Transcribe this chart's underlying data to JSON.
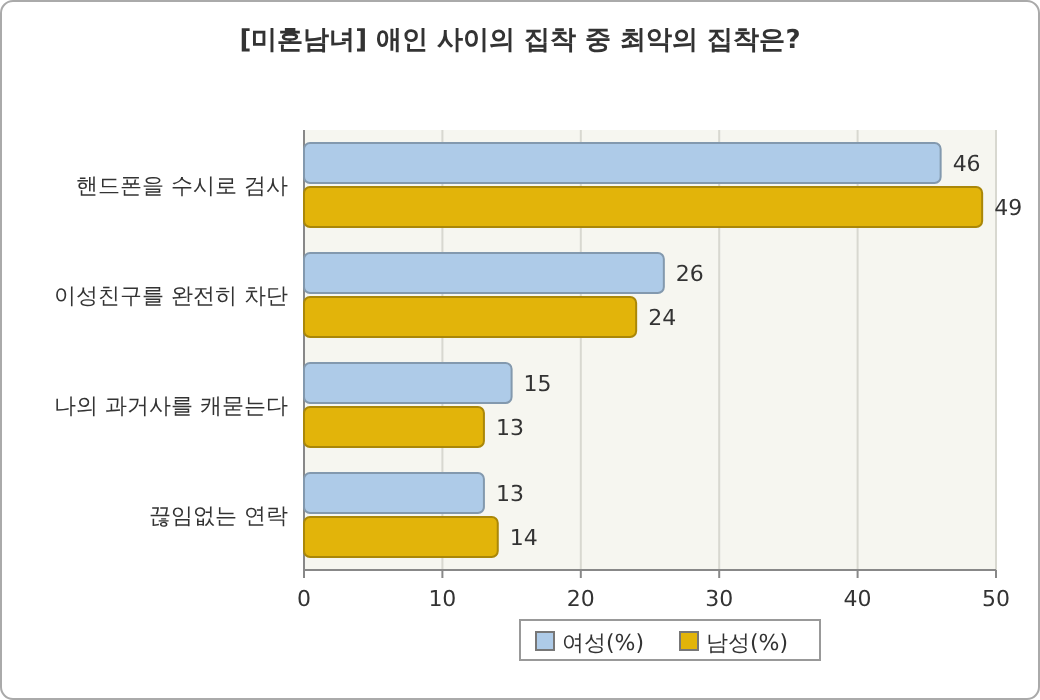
{
  "chart_data": {
    "type": "bar",
    "orientation": "horizontal",
    "title": "[미혼남녀] 애인 사이의 집착 중 최악의 집착은?",
    "categories": [
      "핸드폰을 수시로 검사",
      "이성친구를 완전히 차단",
      "나의 과거사를 캐묻는다",
      "끊임없는 연락"
    ],
    "series": [
      {
        "name": "여성(%)",
        "color": "#aecbe8",
        "values": [
          46,
          26,
          15,
          13
        ]
      },
      {
        "name": "남성(%)",
        "color": "#e2b40a",
        "values": [
          49,
          24,
          13,
          14
        ]
      }
    ],
    "xlim": [
      0,
      50
    ],
    "xticks": [
      0,
      10,
      20,
      30,
      40,
      50
    ],
    "grid": "x",
    "legend": "bottom",
    "data_labels": true
  }
}
